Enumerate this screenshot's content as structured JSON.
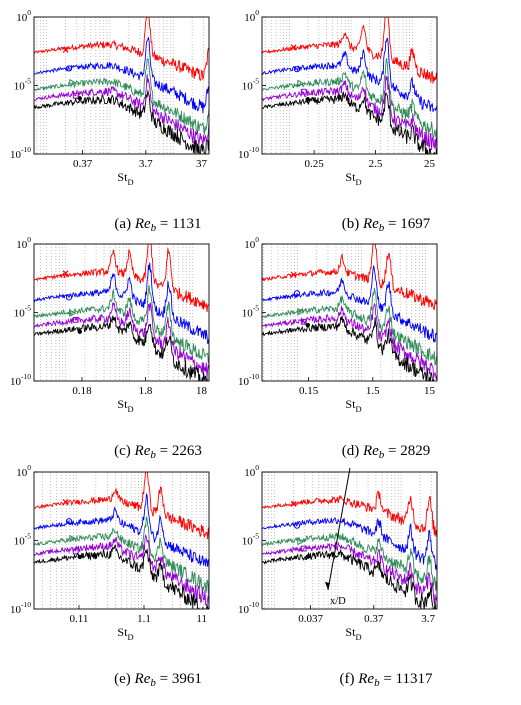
{
  "figure": {
    "panels": [
      {
        "tag": "(a)",
        "var": "Re",
        "sub": "b",
        "eq": "= 1131",
        "xticks": [
          "0.37",
          "3.7",
          "37"
        ],
        "xmin_exp": -1.2,
        "xmax_exp": 1.568,
        "peaks": [
          [
            0.6,
            3.4
          ],
          [
            1.57,
            2.0
          ]
        ]
      },
      {
        "tag": "(b)",
        "var": "Re",
        "sub": "b",
        "eq": "= 1697",
        "xticks": [
          "0.25",
          "2.5",
          "25"
        ],
        "xmin_exp": -1.45,
        "xmax_exp": 1.398,
        "peaks": [
          [
            0.58,
            4.0
          ],
          [
            0.2,
            1.8
          ],
          [
            -0.1,
            1.0
          ],
          [
            1.0,
            1.2
          ]
        ]
      },
      {
        "tag": "(c)",
        "var": "Re",
        "sub": "b",
        "eq": "= 2263",
        "xticks": [
          "0.18",
          "1.8",
          "18"
        ],
        "xmin_exp": -1.5,
        "xmax_exp": 1.255,
        "peaks": [
          [
            0.32,
            3.6
          ],
          [
            0.62,
            2.8
          ],
          [
            0.0,
            1.6
          ],
          [
            -0.25,
            1.4
          ]
        ]
      },
      {
        "tag": "(d)",
        "var": "Re",
        "sub": "b",
        "eq": "= 2829",
        "xticks": [
          "0.15",
          "1.5",
          "15"
        ],
        "xmin_exp": -1.55,
        "xmax_exp": 1.176,
        "peaks": [
          [
            0.2,
            3.2
          ],
          [
            0.42,
            2.4
          ],
          [
            -0.3,
            1.0
          ]
        ]
      },
      {
        "tag": "(e)",
        "var": "Re",
        "sub": "b",
        "eq": "= 3961",
        "xticks": [
          "0.11",
          "1.1",
          "11"
        ],
        "xmin_exp": -1.65,
        "xmax_exp": 1.041,
        "peaks": [
          [
            0.08,
            3.0
          ],
          [
            0.3,
            1.8
          ],
          [
            -0.4,
            0.8
          ]
        ]
      },
      {
        "tag": "(f)",
        "var": "Re",
        "sub": "b",
        "eq": "= 11317",
        "xticks": [
          "0.037",
          "0.37",
          "3.7"
        ],
        "xmin_exp": -2.2,
        "xmax_exp": 0.568,
        "peaks": [
          [
            -0.35,
            1.2
          ],
          [
            0.15,
            1.8
          ],
          [
            0.45,
            2.2
          ]
        ],
        "annotation": "x/D"
      }
    ],
    "y_tick_labels": [
      "10",
      "10",
      "10"
    ],
    "y_tick_exps": [
      "0",
      "-5",
      "-10"
    ],
    "x_axis_label": "St",
    "x_axis_sub": "D"
  },
  "chart_data": [
    {
      "type": "line",
      "scale": "log-log",
      "ylim": [
        "1e-10",
        "1e0"
      ],
      "xticks": [
        "0.37",
        "3.7",
        "37"
      ],
      "xlabel": "St_D",
      "series_colors": [
        "#ff0000",
        "#0000ff",
        "#2e8b57",
        "#9400d3",
        "#000000"
      ]
    },
    {
      "type": "line",
      "scale": "log-log",
      "ylim": [
        "1e-10",
        "1e0"
      ],
      "xticks": [
        "0.25",
        "2.5",
        "25"
      ],
      "xlabel": "St_D",
      "series_colors": [
        "#ff0000",
        "#0000ff",
        "#2e8b57",
        "#9400d3",
        "#000000"
      ]
    },
    {
      "type": "line",
      "scale": "log-log",
      "ylim": [
        "1e-10",
        "1e0"
      ],
      "xticks": [
        "0.18",
        "1.8",
        "18"
      ],
      "xlabel": "St_D",
      "series_colors": [
        "#ff0000",
        "#0000ff",
        "#2e8b57",
        "#9400d3",
        "#000000"
      ]
    },
    {
      "type": "line",
      "scale": "log-log",
      "ylim": [
        "1e-10",
        "1e0"
      ],
      "xticks": [
        "0.15",
        "1.5",
        "15"
      ],
      "xlabel": "St_D",
      "series_colors": [
        "#ff0000",
        "#0000ff",
        "#2e8b57",
        "#9400d3",
        "#000000"
      ]
    },
    {
      "type": "line",
      "scale": "log-log",
      "ylim": [
        "1e-10",
        "1e0"
      ],
      "xticks": [
        "0.11",
        "1.1",
        "11"
      ],
      "xlabel": "St_D",
      "series_colors": [
        "#ff0000",
        "#0000ff",
        "#2e8b57",
        "#9400d3",
        "#000000"
      ]
    },
    {
      "type": "line",
      "scale": "log-log",
      "ylim": [
        "1e-10",
        "1e0"
      ],
      "xticks": [
        "0.037",
        "0.37",
        "3.7"
      ],
      "xlabel": "St_D",
      "series_colors": [
        "#ff0000",
        "#0000ff",
        "#2e8b57",
        "#9400d3",
        "#000000"
      ],
      "annotation": "x/D"
    }
  ],
  "colors": {
    "series": [
      "#ff0000",
      "#0000ff",
      "#2e8b57",
      "#9400d3",
      "#000000"
    ],
    "grid": "#9a9a9a"
  }
}
